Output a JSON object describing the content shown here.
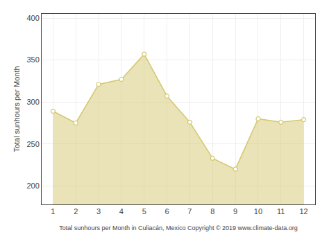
{
  "chart_data": {
    "type": "area",
    "x": [
      1,
      2,
      3,
      4,
      5,
      6,
      7,
      8,
      9,
      10,
      11,
      12
    ],
    "values": [
      289,
      275,
      321,
      327,
      357,
      307,
      276,
      233,
      220,
      280,
      276,
      279
    ],
    "color": "#D4C870",
    "marker": "circle",
    "xlabel": "Total sunhours per Month in Culiacán, Mexico Copyright © 2019 www.climate-data.org",
    "ylabel": "Total sunhours per Month",
    "xlim": [
      0.5,
      12.5
    ],
    "ylim": [
      178,
      405
    ],
    "xticks": [
      1,
      2,
      3,
      4,
      5,
      6,
      7,
      8,
      9,
      10,
      11,
      12
    ],
    "yticks": [
      200,
      250,
      300,
      350,
      400
    ],
    "grid": true
  }
}
